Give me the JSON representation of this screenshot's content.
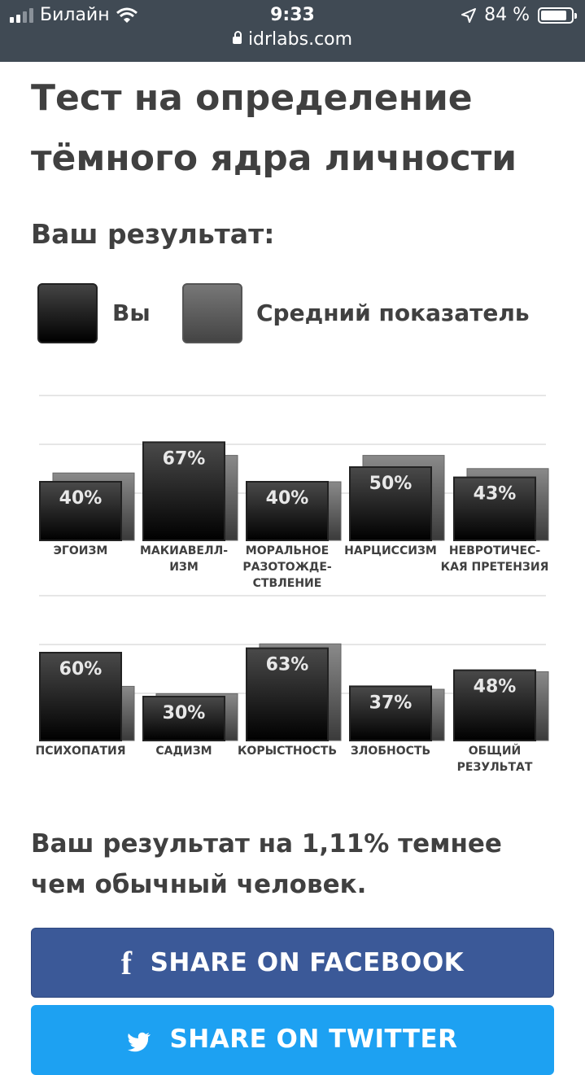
{
  "status_bar": {
    "carrier": "Билайн",
    "time": "9:33",
    "battery": "84 %",
    "url": "idrlabs.com",
    "icons": [
      "signal-icon",
      "wifi-icon",
      "location-icon",
      "battery-icon",
      "lock-icon"
    ]
  },
  "page": {
    "title": "Тест на определение тёмного ядра личности",
    "subtitle": "Ваш результат:",
    "legend": {
      "you": "Вы",
      "average": "Средний показатель"
    },
    "result_text": "Ваш результат на 1,11% темнее чем обычный человек.",
    "share_facebook": "SHARE ON FACEBOOK",
    "share_twitter": "SHARE ON TWITTER"
  },
  "colors": {
    "status_bar": "#404a54",
    "you_bar": "#1a1a1a",
    "average_bar": "#5e5e5e",
    "facebook": "#3b5998",
    "twitter": "#1da1f2"
  },
  "chart_data": [
    {
      "type": "bar",
      "categories": [
        [
          "ЭГОИЗМ"
        ],
        [
          "МАКИАВЕЛЛ-",
          "ИЗМ"
        ],
        [
          "МОРАЛЬНОЕ",
          "РАЗОТОЖДЕ-",
          "СТВЛЕНИЕ"
        ],
        [
          "НАРЦИССИЗМ"
        ],
        [
          "НЕВРОТИЧЕС-",
          "КАЯ ПРЕТЕНЗИЯ"
        ]
      ],
      "series": [
        {
          "name": "Вы",
          "values": [
            40,
            67,
            40,
            50,
            43
          ],
          "labels": [
            "40%",
            "67%",
            "40%",
            "50%",
            "43%"
          ]
        },
        {
          "name": "Средний показатель",
          "values": [
            46,
            58,
            40,
            58,
            49
          ]
        }
      ],
      "ylim": [
        0,
        100
      ],
      "grid": true
    },
    {
      "type": "bar",
      "categories": [
        [
          "ПСИХОПАТИЯ"
        ],
        [
          "САДИЗМ"
        ],
        [
          "КОРЫСТНОСТЬ"
        ],
        [
          "ЗЛОБНОСТЬ"
        ],
        [
          "ОБЩИЙ",
          "РЕЗУЛЬТАТ"
        ]
      ],
      "series": [
        {
          "name": "Вы",
          "values": [
            60,
            30,
            63,
            37,
            48
          ],
          "labels": [
            "60%",
            "30%",
            "63%",
            "37%",
            "48%"
          ]
        },
        {
          "name": "Средний показатель",
          "values": [
            37,
            32,
            66,
            35,
            47
          ]
        }
      ],
      "ylim": [
        0,
        100
      ],
      "grid": true
    }
  ]
}
